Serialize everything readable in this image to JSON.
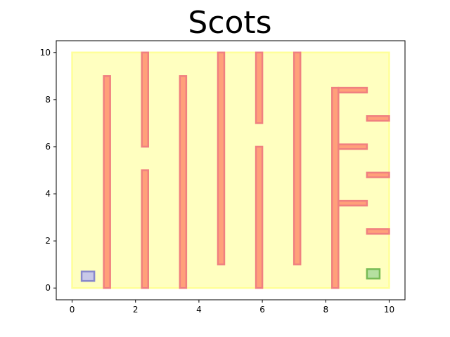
{
  "chart_data": {
    "type": "maze",
    "title": "Scots",
    "xlabel": "",
    "ylabel": "",
    "xlim": [
      -0.5,
      10.5
    ],
    "ylim": [
      -0.5,
      10.5
    ],
    "xticks": [
      0,
      2,
      4,
      6,
      8,
      10
    ],
    "yticks": [
      0,
      2,
      4,
      6,
      8,
      10
    ],
    "grid": false,
    "colors": {
      "floor_fill": "#ffffc0",
      "floor_edge": "#ffff99",
      "wall_fill": "#ffa07a",
      "wall_edge": "#f08080",
      "start_fill": "#c8c8e8",
      "start_edge": "#8888cc",
      "goal_fill": "#b5e0a0",
      "goal_edge": "#77bb55"
    },
    "floor": {
      "x0": 0,
      "x1": 10,
      "y0": 0,
      "y1": 10
    },
    "walls": [
      {
        "x0": 1.0,
        "x1": 1.2,
        "y0": 0,
        "y1": 9
      },
      {
        "x0": 2.2,
        "x1": 2.4,
        "y0": 0,
        "y1": 5
      },
      {
        "x0": 2.2,
        "x1": 2.4,
        "y0": 6,
        "y1": 10
      },
      {
        "x0": 3.4,
        "x1": 3.6,
        "y0": 0,
        "y1": 9
      },
      {
        "x0": 4.6,
        "x1": 4.8,
        "y0": 1,
        "y1": 10
      },
      {
        "x0": 5.8,
        "x1": 6.0,
        "y0": 0,
        "y1": 6
      },
      {
        "x0": 5.8,
        "x1": 6.0,
        "y0": 7,
        "y1": 10
      },
      {
        "x0": 7.0,
        "x1": 7.2,
        "y0": 1,
        "y1": 10
      },
      {
        "x0": 8.2,
        "x1": 8.4,
        "y0": 0,
        "y1": 8.5
      },
      {
        "x0": 8.4,
        "x1": 9.3,
        "y0": 8.3,
        "y1": 8.5
      },
      {
        "x0": 9.3,
        "x1": 10.0,
        "y0": 7.1,
        "y1": 7.3
      },
      {
        "x0": 8.4,
        "x1": 9.3,
        "y0": 5.9,
        "y1": 6.1
      },
      {
        "x0": 9.3,
        "x1": 10.0,
        "y0": 4.7,
        "y1": 4.9
      },
      {
        "x0": 8.4,
        "x1": 9.3,
        "y0": 3.5,
        "y1": 3.7
      },
      {
        "x0": 9.3,
        "x1": 10.0,
        "y0": 2.3,
        "y1": 2.5
      }
    ],
    "start": {
      "x0": 0.3,
      "x1": 0.7,
      "y0": 0.3,
      "y1": 0.7
    },
    "goal": {
      "x0": 9.3,
      "x1": 9.7,
      "y0": 0.4,
      "y1": 0.8
    }
  }
}
